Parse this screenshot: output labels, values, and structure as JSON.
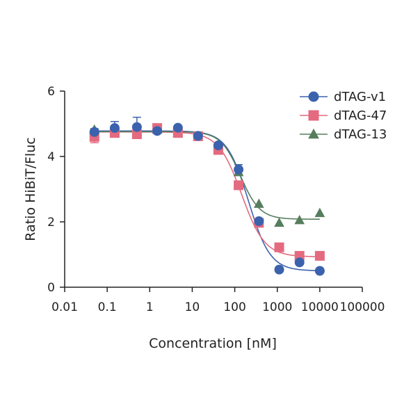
{
  "chart_data": {
    "type": "scatter",
    "xlabel": "Concentration [nM]",
    "ylabel": "Ratio HiBiT/Fluc",
    "xscale": "log",
    "xlim": [
      0.01,
      100000
    ],
    "ylim": [
      0,
      6
    ],
    "x_tick_labels": [
      "0.01",
      "0.1",
      "1",
      "10",
      "100",
      "1000",
      "10000",
      "100000"
    ],
    "y_tick_labels": [
      "0",
      "2",
      "4",
      "6"
    ],
    "grid": false,
    "legend_position": "top-right",
    "series": [
      {
        "name": "dTAG-v1",
        "color": "#3b62ad",
        "marker": "circle",
        "x": [
          0.05,
          0.15,
          0.5,
          1.5,
          4.6,
          13.7,
          41,
          123,
          370,
          1111,
          3333,
          10000
        ],
        "y": [
          4.75,
          4.87,
          4.9,
          4.78,
          4.88,
          4.63,
          4.34,
          3.6,
          2.02,
          0.54,
          0.76,
          0.5
        ],
        "err": [
          0.1,
          0.2,
          0.3,
          0.05,
          0.05,
          0.05,
          0.05,
          0.15,
          0.08,
          0.04,
          0.05,
          0.03
        ],
        "fit": {
          "top": 4.78,
          "bottom": 0.5,
          "ic50": 210,
          "hill": 1.7
        }
      },
      {
        "name": "dTAG-47",
        "color": "#e46a7f",
        "marker": "square",
        "x": [
          0.05,
          0.15,
          0.5,
          1.5,
          4.6,
          13.7,
          41,
          123,
          370,
          1111,
          3333,
          10000
        ],
        "y": [
          4.6,
          4.72,
          4.68,
          4.87,
          4.72,
          4.62,
          4.2,
          3.12,
          1.97,
          1.22,
          0.96,
          0.96
        ],
        "err": [
          0.18,
          0.05,
          0.05,
          0.05,
          0.05,
          0.05,
          0.05,
          0.05,
          0.05,
          0.05,
          0.05,
          0.05
        ],
        "fit": {
          "top": 4.75,
          "bottom": 0.93,
          "ic50": 145,
          "hill": 1.6
        }
      },
      {
        "name": "dTAG-13",
        "color": "#567e5e",
        "marker": "triangle",
        "x": [
          0.05,
          0.15,
          0.5,
          1.5,
          4.6,
          13.7,
          41,
          123,
          370,
          1111,
          3333,
          10000
        ],
        "y": [
          4.82,
          4.75,
          4.75,
          4.82,
          4.72,
          4.62,
          4.34,
          3.52,
          2.55,
          1.97,
          2.05,
          2.27
        ],
        "err": [
          0.05,
          0.05,
          0.05,
          0.05,
          0.05,
          0.05,
          0.05,
          0.05,
          0.05,
          0.05,
          0.05,
          0.05
        ],
        "fit": {
          "top": 4.76,
          "bottom": 2.08,
          "ic50": 135,
          "hill": 1.9
        }
      }
    ]
  }
}
